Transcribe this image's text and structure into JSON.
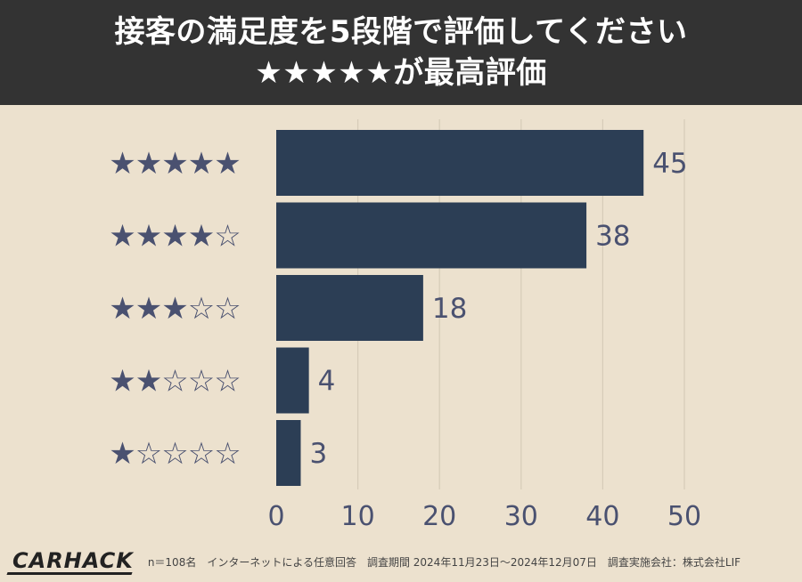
{
  "header": {
    "title_line1": "接客の満足度を5段階で評価してください",
    "title_line2": "★★★★★が最高評価"
  },
  "footer": {
    "logo": "CARHACK",
    "note": "n＝108名　インターネットによる任意回答　調査期間 2024年11月23日〜2024年12月07日　調査実施会社：株式会社LIF"
  },
  "colors": {
    "background": "#ece1ce",
    "header_bg": "#333333",
    "bar": "#2c3e55",
    "star": "#4a5170",
    "label": "#4a5170",
    "grid": "#d6cbb8"
  },
  "chart_data": {
    "type": "bar",
    "orientation": "horizontal",
    "categories": [
      "★★★★★",
      "★★★★☆",
      "★★★☆☆",
      "★★☆☆☆",
      "★☆☆☆☆"
    ],
    "values": [
      45,
      38,
      18,
      4,
      3
    ],
    "xlim": [
      0,
      50
    ],
    "xticks": [
      "0",
      "10",
      "20",
      "30",
      "40",
      "50"
    ],
    "grid": "vertical",
    "data_labels": [
      "45",
      "38",
      "18",
      "4",
      "3"
    ],
    "title": "",
    "xlabel": "",
    "ylabel": ""
  }
}
